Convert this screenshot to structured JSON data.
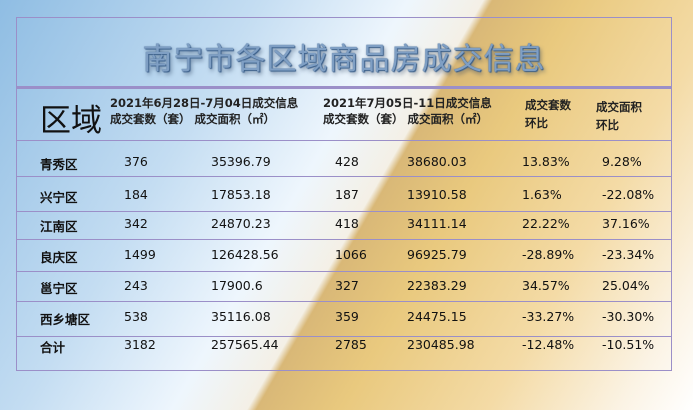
{
  "title": "南宁市各区域商品房成交信息",
  "header": {
    "region": "区域",
    "period1": "2021年6月28日-7月04日成交信息",
    "period1_sub": "成交套数（套） 成交面积（㎡）",
    "period2": "2021年7月05日-11日成交信息",
    "period2_sub": "成交套数（套） 成交面积（㎡）",
    "units_ratio_l1": "成交套数",
    "units_ratio_l2": "环比",
    "area_ratio_l1": "成交面积",
    "area_ratio_l2": "环比"
  },
  "rows": [
    [
      "青秀区",
      "376",
      "35396.79",
      "428",
      "38680.03",
      "13.83%",
      "9.28%"
    ],
    [
      "兴宁区",
      "184",
      "17853.18",
      "187",
      "13910.58",
      "1.63%",
      "-22.08%"
    ],
    [
      "江南区",
      "342",
      "24870.23",
      "418",
      "34111.14",
      "22.22%",
      "37.16%"
    ],
    [
      "良庆区",
      "1499",
      "126428.56",
      "1066",
      "96925.79",
      "-28.89%",
      "-23.34%"
    ],
    [
      "邕宁区",
      "243",
      "17900.6",
      "327",
      "22383.29",
      "34.57%",
      "25.04%"
    ],
    [
      "西乡塘区",
      "538",
      "35116.08",
      "359",
      "24475.15",
      "-33.27%",
      "-30.30%"
    ],
    [
      "合计",
      "3182",
      "257565.44",
      "2785",
      "230485.98",
      "-12.48%",
      "-10.51%"
    ]
  ]
}
